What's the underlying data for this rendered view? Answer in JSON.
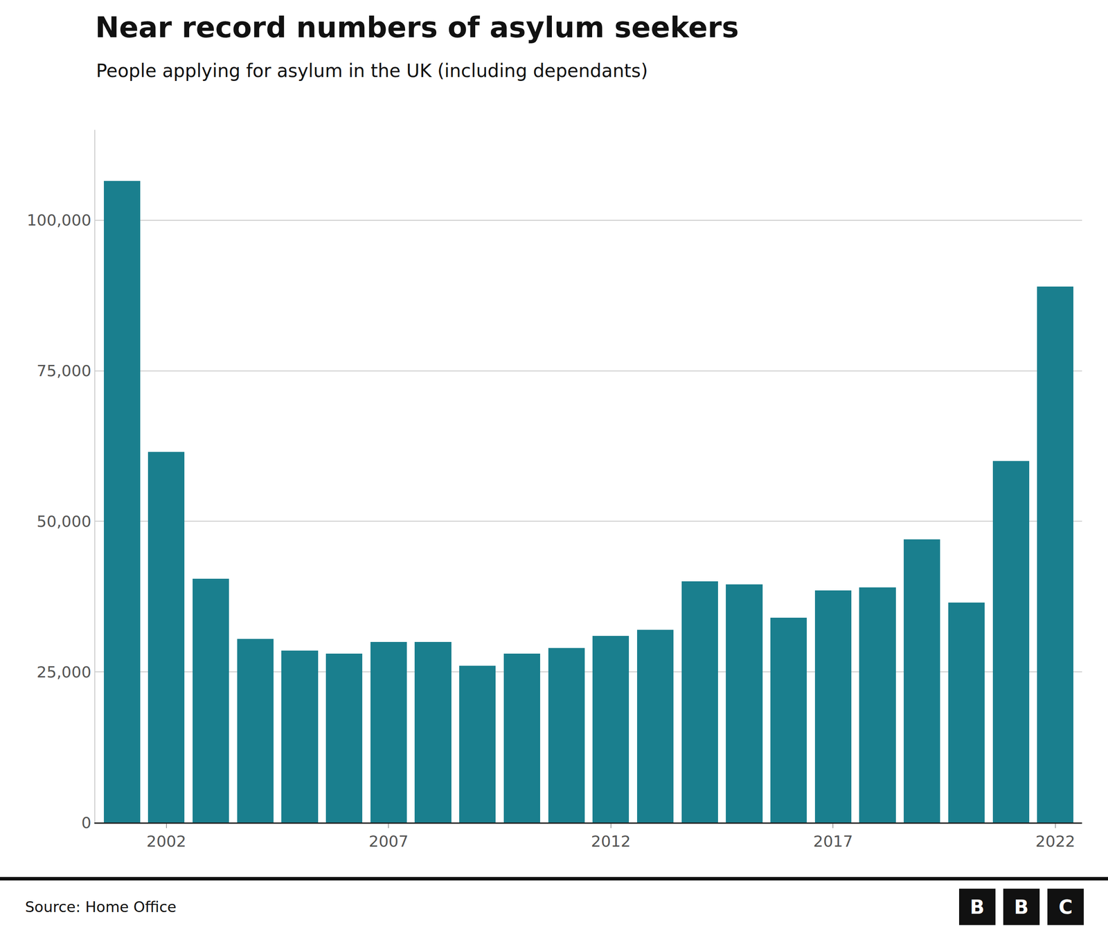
{
  "chart_data": {
    "type": "bar",
    "title": "Near record numbers of asylum seekers",
    "subtitle": "People applying for asylum in the UK (including dependants)",
    "source": "Source: Home Office",
    "logo": [
      "B",
      "B",
      "C"
    ],
    "x": [
      2001,
      2002,
      2003,
      2004,
      2005,
      2006,
      2007,
      2008,
      2009,
      2010,
      2011,
      2012,
      2013,
      2014,
      2015,
      2016,
      2017,
      2018,
      2019,
      2020,
      2021,
      2022
    ],
    "values": [
      106500,
      61500,
      40500,
      30500,
      28500,
      28000,
      30000,
      30000,
      26000,
      28000,
      29000,
      31000,
      32000,
      40000,
      39500,
      34000,
      38500,
      39000,
      47000,
      36500,
      60000,
      89000
    ],
    "color": "#1a7f8e",
    "xlim": [
      2000.4,
      2022.6
    ],
    "xticks": [
      2002,
      2007,
      2012,
      2017,
      2022
    ],
    "ylim": [
      0,
      115000
    ],
    "yticks": [
      0,
      {
        "value": 25000,
        "label": "25,000"
      },
      {
        "value": 50000,
        "label": "50,000"
      },
      {
        "value": 75000,
        "label": "75,000"
      },
      {
        "value": 100000,
        "label": "100,000"
      }
    ],
    "grid": true
  }
}
